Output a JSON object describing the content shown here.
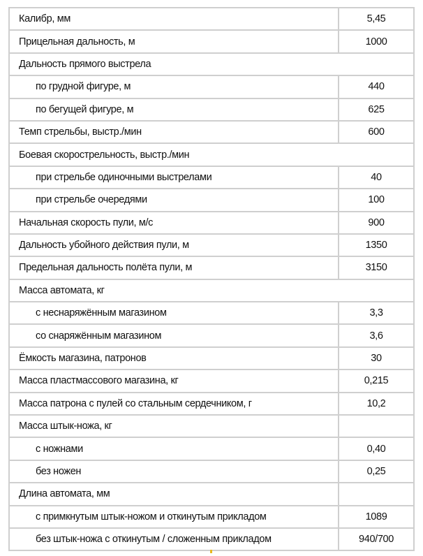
{
  "rows": [
    {
      "label": "Калибр, мм",
      "value": "5,45",
      "indent": false,
      "span": false
    },
    {
      "label": "Прицельная дальность, м",
      "value": "1000",
      "indent": false,
      "span": false
    },
    {
      "label": "Дальность прямого выстрела",
      "value": "",
      "indent": false,
      "span": true
    },
    {
      "label": "по грудной фигуре, м",
      "value": "440",
      "indent": true,
      "span": false
    },
    {
      "label": "по бегущей фигуре, м",
      "value": "625",
      "indent": true,
      "span": false
    },
    {
      "label": "Темп стрельбы, выстр./мин",
      "value": "600",
      "indent": false,
      "span": false
    },
    {
      "label": "Боевая скорострельность, выстр./мин",
      "value": "",
      "indent": false,
      "span": true
    },
    {
      "label": "при стрельбе одиночными выстрелами",
      "value": "40",
      "indent": true,
      "span": false
    },
    {
      "label": "при стрельбе очередями",
      "value": "100",
      "indent": true,
      "span": false
    },
    {
      "label": "Начальная скорость пули, м/с",
      "value": "900",
      "indent": false,
      "span": false
    },
    {
      "label": "Дальность убойного действия пули, м",
      "value": "1350",
      "indent": false,
      "span": false
    },
    {
      "label": "Предельная дальность полёта пули, м",
      "value": "3150",
      "indent": false,
      "span": false
    },
    {
      "label": "Масса автомата, кг",
      "value": "",
      "indent": false,
      "span": true
    },
    {
      "label": "с неснаряжённым магазином",
      "value": "3,3",
      "indent": true,
      "span": false
    },
    {
      "label": "со снаряжённым магазином",
      "value": "3,6",
      "indent": true,
      "span": false
    },
    {
      "label": "Ёмкость магазина, патронов",
      "value": "30",
      "indent": false,
      "span": false
    },
    {
      "label": "Масса пластмассового магазина, кг",
      "value": "0,215",
      "indent": false,
      "span": false
    },
    {
      "label": "Масса патрона с пулей со стальным сердечником, г",
      "value": "10,2",
      "indent": false,
      "span": false
    },
    {
      "label": "Масса штык-ножа, кг",
      "value": "",
      "indent": false,
      "span": false
    },
    {
      "label": "с ножнами",
      "value": "0,40",
      "indent": true,
      "span": false
    },
    {
      "label": "без ножен",
      "value": "0,25",
      "indent": true,
      "span": false
    },
    {
      "label": "Длина автомата, мм",
      "value": "",
      "indent": false,
      "span": false
    },
    {
      "label": "с примкнутым штык-ножом и откинутым прикладом",
      "value": "1089",
      "indent": true,
      "span": false
    },
    {
      "label": "без штык-ножа с откинутым / сложенным прикладом",
      "value": "940/700",
      "indent": true,
      "span": false
    }
  ]
}
